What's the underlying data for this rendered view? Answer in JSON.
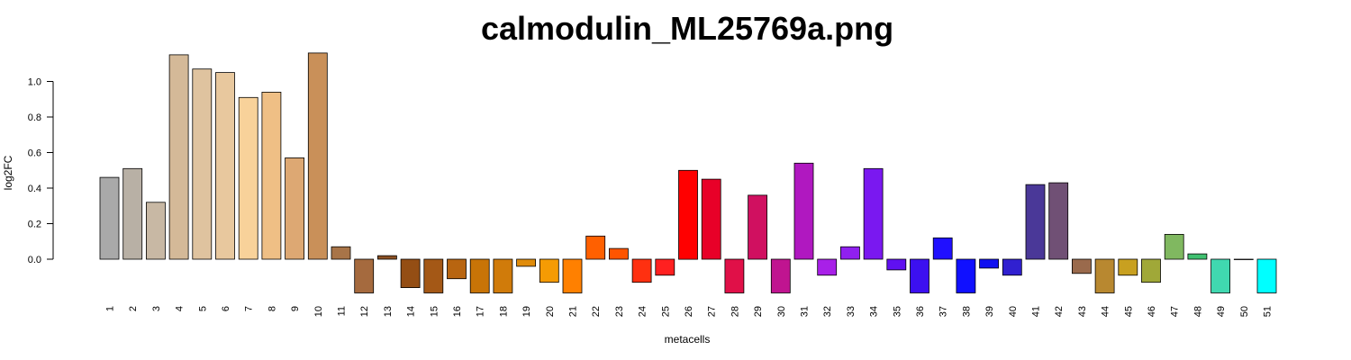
{
  "chart_data": {
    "type": "bar",
    "title": "calmodulin_ML25769a.png",
    "xlabel": "metacells",
    "ylabel": "log2FC",
    "ylim": [
      -0.2,
      1.2
    ],
    "yticks": [
      0.0,
      0.2,
      0.4,
      0.6,
      0.8,
      1.0
    ],
    "ytick_labels": [
      "0.0",
      "0.2",
      "0.4",
      "0.6",
      "0.8",
      "1.0"
    ],
    "grid": false,
    "categories": [
      "1",
      "2",
      "3",
      "4",
      "5",
      "6",
      "7",
      "8",
      "9",
      "10",
      "11",
      "12",
      "13",
      "14",
      "15",
      "16",
      "17",
      "18",
      "19",
      "20",
      "21",
      "22",
      "23",
      "24",
      "25",
      "26",
      "27",
      "28",
      "29",
      "30",
      "31",
      "32",
      "33",
      "34",
      "35",
      "36",
      "37",
      "38",
      "39",
      "40",
      "41",
      "42",
      "43",
      "44",
      "45",
      "46",
      "47",
      "48",
      "49",
      "50",
      "51"
    ],
    "values": [
      0.46,
      0.51,
      0.32,
      1.15,
      1.07,
      1.05,
      0.91,
      0.94,
      0.57,
      1.16,
      0.07,
      -0.19,
      0.02,
      -0.16,
      -0.19,
      -0.11,
      -0.19,
      -0.19,
      -0.04,
      -0.13,
      -0.19,
      0.13,
      0.06,
      -0.13,
      -0.09,
      0.5,
      0.45,
      -0.19,
      0.36,
      -0.19,
      0.54,
      -0.09,
      0.07,
      0.51,
      -0.06,
      -0.19,
      0.12,
      -0.19,
      -0.05,
      -0.09,
      0.42,
      0.43,
      -0.08,
      -0.19,
      -0.09,
      -0.13,
      0.14,
      0.03,
      -0.19,
      0.0,
      -0.19
    ],
    "colors": [
      "#a9a9a9",
      "#b8b0a5",
      "#c8b8a4",
      "#d4b998",
      "#dfc39f",
      "#e8c89e",
      "#f8d29a",
      "#efbf85",
      "#dda873",
      "#c99059",
      "#a87448",
      "#a56a3e",
      "#8c5124",
      "#944e14",
      "#a45816",
      "#b86510",
      "#c87407",
      "#d07b0a",
      "#e08c0a",
      "#f59b04",
      "#ff8000",
      "#ff6000",
      "#ff5500",
      "#ff3010",
      "#ff2020",
      "#ff0000",
      "#e80028",
      "#e01048",
      "#d01060",
      "#c01490",
      "#b018c0",
      "#a820e8",
      "#9020f0",
      "#7a18f0",
      "#6010f0",
      "#3c10f0",
      "#2010ff",
      "#1010ff",
      "#1010f0",
      "#3020d0",
      "#4a3898",
      "#705075",
      "#9a6a4c",
      "#b88830",
      "#c8a020",
      "#a0a838",
      "#80b860",
      "#40c070",
      "#40d8b0",
      "#30e8d8",
      "#00ffff"
    ]
  }
}
